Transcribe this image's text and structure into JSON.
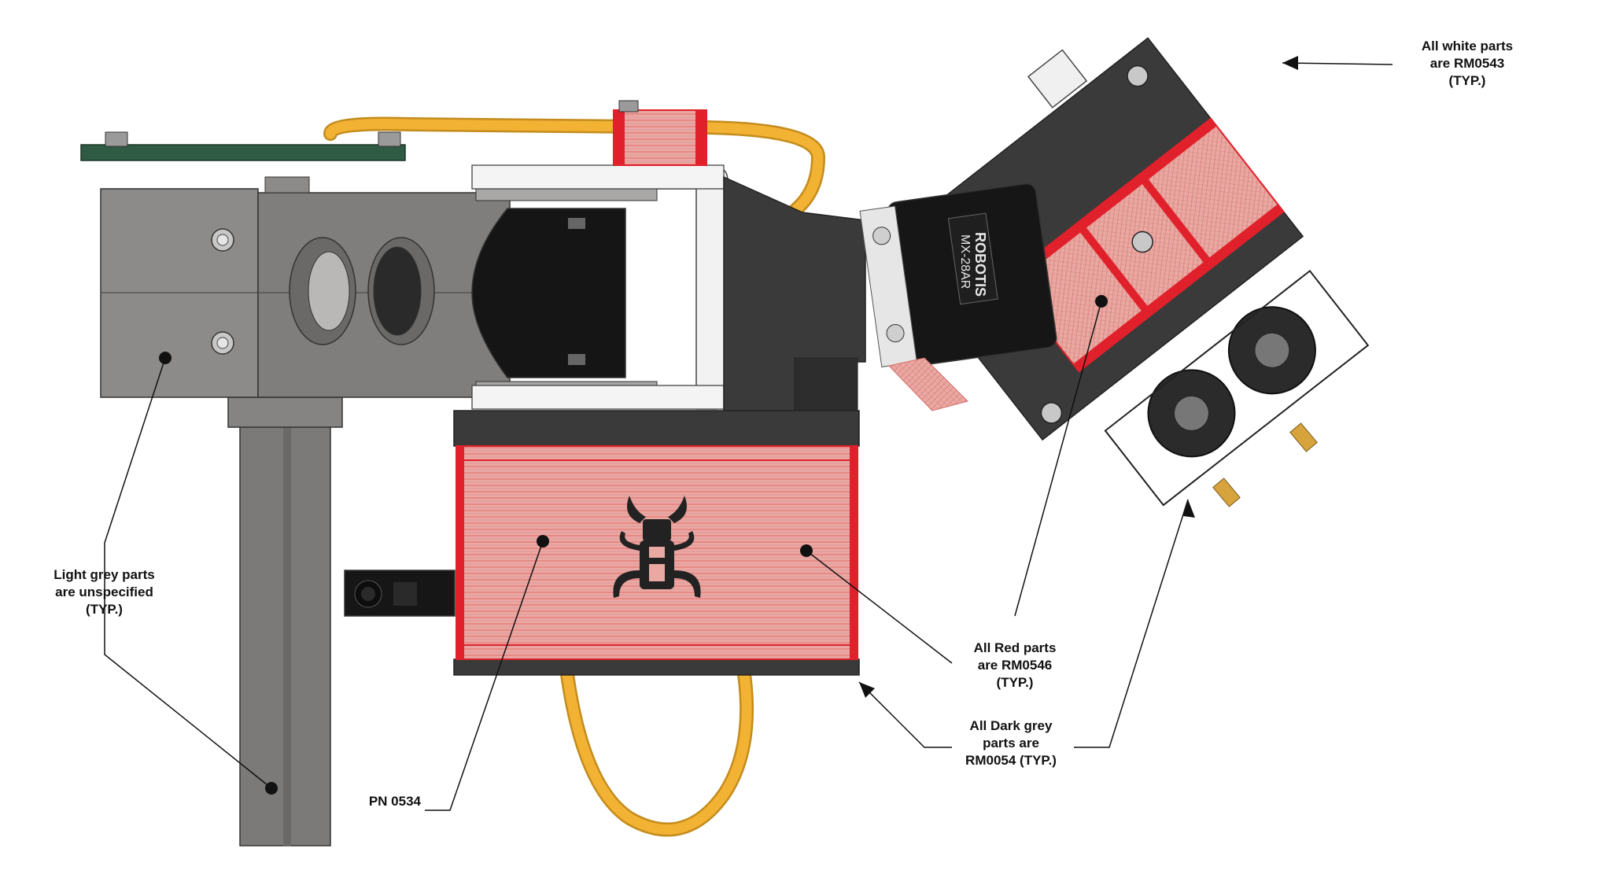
{
  "callouts": {
    "light_grey": [
      "Light grey parts",
      "are unspecified",
      "(TYP.)"
    ],
    "white": [
      "All white parts",
      "are RM0543",
      "(TYP.)"
    ],
    "red": [
      "All Red parts",
      "are RM0546",
      "(TYP.)"
    ],
    "dark_grey": [
      "All Dark grey",
      "parts are",
      "RM0054 (TYP.)"
    ],
    "part_number": "PN 0534"
  },
  "servo_label": {
    "brand": "ROBOTIS",
    "model": "MX-28AR"
  },
  "colors": {
    "light_grey": "#8a8a88",
    "dark_grey": "#3a3a3a",
    "red_part": "#e9a5a0",
    "red_edge": "#e0212b",
    "cable": "#f2b233",
    "pcb": "#2f5b45",
    "white_part": "#f2f2f2",
    "black": "#141414"
  }
}
